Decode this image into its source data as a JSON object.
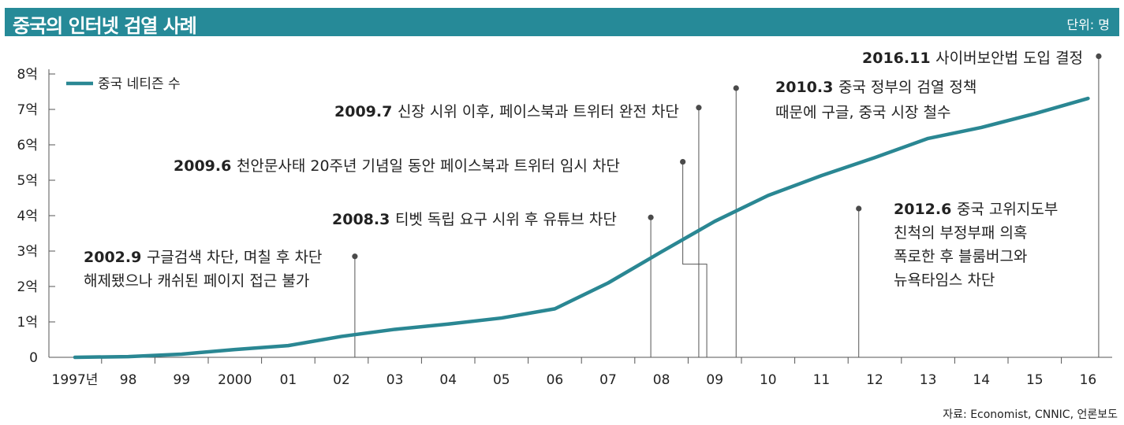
{
  "header": {
    "title": "중국의 인터넷 검열 사례",
    "unit": "단위: 명"
  },
  "source": "자료: Economist, CNNIC, 언론보도",
  "colors": {
    "accent": "#268a98",
    "line": "#2a8793",
    "text": "#222222",
    "marker": "#4a4a4a"
  },
  "chart_data": {
    "type": "line",
    "categories": [
      "1997년",
      "98",
      "99",
      "2000",
      "01",
      "02",
      "03",
      "04",
      "05",
      "06",
      "07",
      "08",
      "09",
      "10",
      "11",
      "12",
      "13",
      "14",
      "15",
      "16"
    ],
    "y_ticks": [
      "0",
      "1억",
      "2억",
      "3억",
      "4억",
      "5억",
      "6억",
      "7억",
      "8억"
    ],
    "ylim": [
      0,
      8
    ],
    "y_unit": "억",
    "series": [
      {
        "name": "중국 네티즌 수",
        "values": [
          0.0,
          0.02,
          0.09,
          0.22,
          0.33,
          0.59,
          0.79,
          0.94,
          1.11,
          1.37,
          2.1,
          2.98,
          3.84,
          4.57,
          5.13,
          5.64,
          6.18,
          6.49,
          6.88,
          7.31
        ]
      }
    ],
    "annotations": [
      {
        "date": "2002.9",
        "x": 5.25,
        "marker_y": 2.85,
        "text_lines": [
          "구글검색 차단, 며칠 후 차단",
          "해제됐으나 캐쉬된 페이지 접근 불가"
        ]
      },
      {
        "date": "2008.3",
        "x": 10.8,
        "marker_y": 3.95,
        "text_lines": [
          "티벳 독립 요구 시위 후 유튜브 차단"
        ]
      },
      {
        "date": "2009.6",
        "x": 11.4,
        "marker_y": 5.52,
        "text_lines": [
          "천안문사태 20주년 기념일 동안 페이스북과 트위터 임시 차단"
        ]
      },
      {
        "date": "2009.7",
        "x": 11.7,
        "marker_y": 7.05,
        "text_lines": [
          "신장 시위 이후,  페이스북과 트위터 완전 차단"
        ]
      },
      {
        "date": "2010.3",
        "x": 12.4,
        "marker_y": 7.6,
        "text_lines": [
          "중국 정부의 검열 정책",
          "때문에 구글, 중국 시장 철수"
        ]
      },
      {
        "date": "2012.6",
        "x": 14.7,
        "marker_y": 4.2,
        "text_lines": [
          "중국 고위지도부",
          "친척의 부정부패 의혹",
          "폭로한 후 블룸버그와",
          "뉴욕타임스 차단"
        ]
      },
      {
        "date": "2016.11",
        "x": 19.2,
        "marker_y": 8.5,
        "text_lines": [
          "사이버보안법 도입 결정"
        ]
      }
    ],
    "legend": "top-left",
    "grid": false
  }
}
